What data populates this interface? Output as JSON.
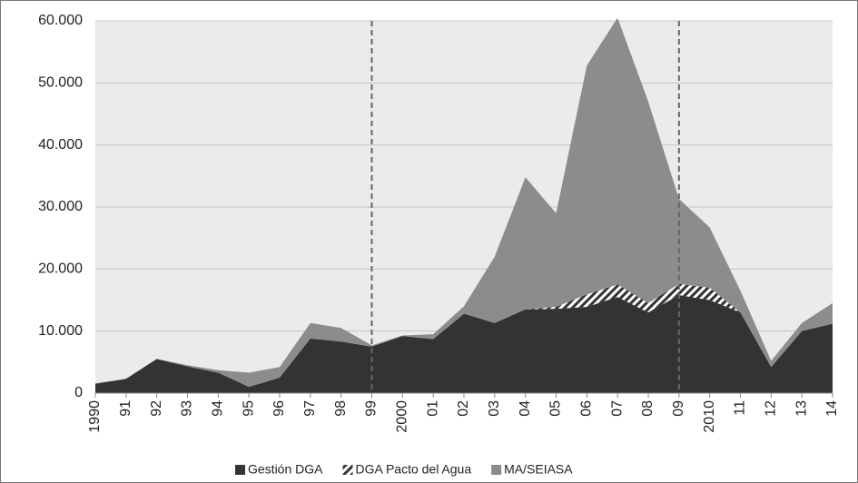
{
  "chart_data": {
    "type": "stacked_area",
    "categories": [
      "1990",
      "91",
      "92",
      "93",
      "94",
      "95",
      "96",
      "97",
      "98",
      "99",
      "2000",
      "01",
      "02",
      "03",
      "04",
      "05",
      "06",
      "07",
      "08",
      "09",
      "2010",
      "11",
      "12",
      "13",
      "14"
    ],
    "series": [
      {
        "name": "Gestión DGA",
        "color": "#333333",
        "values": [
          1500,
          2300,
          5500,
          4300,
          3300,
          1000,
          2500,
          8800,
          8300,
          7500,
          9200,
          8700,
          12800,
          11300,
          13500,
          13600,
          13900,
          15500,
          13000,
          15800,
          15000,
          13000,
          4200,
          10000,
          11200
        ]
      },
      {
        "name": "DGA Pacto del Agua",
        "color": "#333333",
        "pattern": "hatch",
        "values": [
          0,
          0,
          0,
          0,
          0,
          0,
          0,
          0,
          0,
          0,
          0,
          0,
          0,
          0,
          0,
          300,
          2000,
          2000,
          1500,
          1800,
          2000,
          0,
          0,
          0,
          0
        ]
      },
      {
        "name": "MA/SEIASA",
        "color": "#8c8c8c",
        "values": [
          100,
          0,
          0,
          200,
          400,
          2300,
          1700,
          2500,
          2200,
          200,
          100,
          800,
          1200,
          10700,
          21300,
          15100,
          36900,
          43000,
          32500,
          13700,
          9700,
          3500,
          1000,
          1300,
          3300
        ]
      }
    ],
    "reference_lines": [
      "99",
      "09"
    ],
    "ylim": [
      0,
      60000
    ],
    "yticks": [
      0,
      {
        "value": 10000,
        "label": "10.000"
      },
      {
        "value": 20000,
        "label": "20.000"
      },
      {
        "value": 30000,
        "label": "30.000"
      },
      {
        "value": 40000,
        "label": "40.000"
      },
      {
        "value": 50000,
        "label": "50.000"
      },
      {
        "value": 60000,
        "label": "60.000"
      }
    ],
    "grid": true,
    "background": "#ebebeb",
    "legend": "bottom"
  }
}
